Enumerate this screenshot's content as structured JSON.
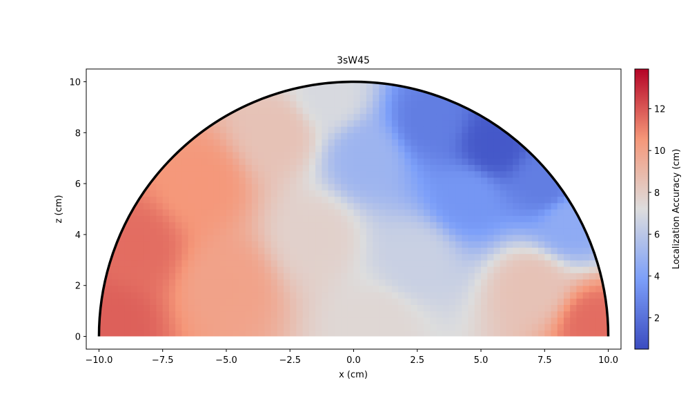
{
  "chart_data": {
    "type": "heatmap",
    "title": "3sW45",
    "xlabel": "x (cm)",
    "ylabel": "z (cm)",
    "xlim": [
      -10.5,
      10.5
    ],
    "ylim": [
      -0.5,
      10.5
    ],
    "xticks": [
      -10.0,
      -7.5,
      -5.0,
      -2.5,
      0.0,
      2.5,
      5.0,
      7.5,
      10.0
    ],
    "xtick_labels": [
      "−10.0",
      "−7.5",
      "−5.0",
      "−2.5",
      "0.0",
      "2.5",
      "5.0",
      "7.5",
      "10.0"
    ],
    "yticks": [
      0,
      2,
      4,
      6,
      8,
      10
    ],
    "ytick_labels": [
      "0",
      "2",
      "4",
      "6",
      "8",
      "10"
    ],
    "region": {
      "shape": "semicircle",
      "radius": 10,
      "center": [
        0,
        0
      ]
    },
    "colormap": "coolwarm",
    "colorbar": {
      "label": "Localization Accuracy (cm)",
      "range": [
        0.5,
        13.9
      ],
      "ticks": [
        2,
        4,
        6,
        8,
        10,
        12
      ],
      "tick_labels": [
        "2",
        "4",
        "6",
        "8",
        "10",
        "12"
      ]
    },
    "field_samples": [
      {
        "x": -9.5,
        "z": 0.5,
        "value": 11.8
      },
      {
        "x": -8.5,
        "z": 3.5,
        "value": 11.5
      },
      {
        "x": -6.0,
        "z": 6.0,
        "value": 10.5
      },
      {
        "x": -5.0,
        "z": 2.0,
        "value": 10.0
      },
      {
        "x": -3.0,
        "z": 8.0,
        "value": 8.5
      },
      {
        "x": -1.5,
        "z": 4.0,
        "value": 7.8
      },
      {
        "x": -1.0,
        "z": 9.5,
        "value": 7.0
      },
      {
        "x": 0.5,
        "z": 7.0,
        "value": 5.0
      },
      {
        "x": 1.0,
        "z": 0.5,
        "value": 7.5
      },
      {
        "x": 2.5,
        "z": 3.0,
        "value": 6.5
      },
      {
        "x": 3.0,
        "z": 8.5,
        "value": 2.5
      },
      {
        "x": 4.5,
        "z": 5.5,
        "value": 3.5
      },
      {
        "x": 5.5,
        "z": 7.5,
        "value": 1.0
      },
      {
        "x": 7.5,
        "z": 6.0,
        "value": 2.5
      },
      {
        "x": 8.5,
        "z": 4.5,
        "value": 4.5
      },
      {
        "x": 7.0,
        "z": 2.0,
        "value": 8.5
      },
      {
        "x": 9.5,
        "z": 0.5,
        "value": 11.5
      }
    ]
  }
}
